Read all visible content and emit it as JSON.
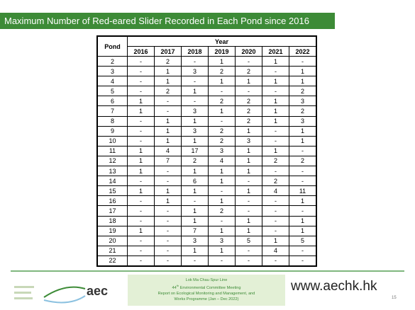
{
  "header": {
    "title": "Maximum Number of Red-eared Slider Recorded in Each Pond since 2016"
  },
  "table": {
    "corner": "Pond",
    "group": "Year",
    "columns": [
      "2016",
      "2017",
      "2018",
      "2019",
      "2020",
      "2021",
      "2022"
    ],
    "rows": [
      [
        "2",
        "-",
        "2",
        "-",
        "1",
        "-",
        "1",
        "-"
      ],
      [
        "3",
        "-",
        "1",
        "3",
        "2",
        "2",
        "-",
        "1"
      ],
      [
        "4",
        "-",
        "1",
        "-",
        "1",
        "1",
        "1",
        "1"
      ],
      [
        "5",
        "-",
        "2",
        "1",
        "-",
        "-",
        "-",
        "2"
      ],
      [
        "6",
        "1",
        "-",
        "-",
        "2",
        "2",
        "1",
        "3"
      ],
      [
        "7",
        "1",
        "-",
        "3",
        "1",
        "2",
        "1",
        "2"
      ],
      [
        "8",
        "-",
        "1",
        "1",
        "-",
        "2",
        "1",
        "3"
      ],
      [
        "9",
        "-",
        "1",
        "3",
        "2",
        "1",
        "-",
        "1"
      ],
      [
        "10",
        "-",
        "1",
        "1",
        "2",
        "3",
        "-",
        "1"
      ],
      [
        "11",
        "1",
        "4",
        "17",
        "3",
        "1",
        "1",
        "-"
      ],
      [
        "12",
        "1",
        "7",
        "2",
        "4",
        "1",
        "2",
        "2"
      ],
      [
        "13",
        "1",
        "-",
        "1",
        "1",
        "1",
        "-",
        "-"
      ],
      [
        "14",
        "-",
        "-",
        "6",
        "1",
        "-",
        "2",
        "-"
      ],
      [
        "15",
        "1",
        "1",
        "1",
        "-",
        "1",
        "4",
        "11"
      ],
      [
        "16",
        "-",
        "1",
        "-",
        "1",
        "-",
        "-",
        "1"
      ],
      [
        "17",
        "-",
        "-",
        "1",
        "2",
        "-",
        "-",
        "-"
      ],
      [
        "18",
        "-",
        "-",
        "1",
        "-",
        "1",
        "-",
        "1"
      ],
      [
        "19",
        "1",
        "-",
        "7",
        "1",
        "1",
        "-",
        "1"
      ],
      [
        "20",
        "-",
        "-",
        "3",
        "3",
        "5",
        "1",
        "5"
      ],
      [
        "21",
        "-",
        "-",
        "1",
        "1",
        "-",
        "4",
        "-"
      ],
      [
        "22",
        "-",
        "-",
        "-",
        "-",
        "-",
        "-",
        "-"
      ]
    ]
  },
  "footer": {
    "logo": "aec",
    "project": "Lok Ma Chau Spur Line",
    "meeting_number": "44",
    "meeting_suffix": "th",
    "meeting": "Environmental Committee Meeting",
    "report_line1": "Report on Ecological Monitoring and Management, and",
    "report_line2": "Works Programme (Jan – Dec 2022)",
    "website": "www.aechk.hk",
    "page": "15"
  }
}
